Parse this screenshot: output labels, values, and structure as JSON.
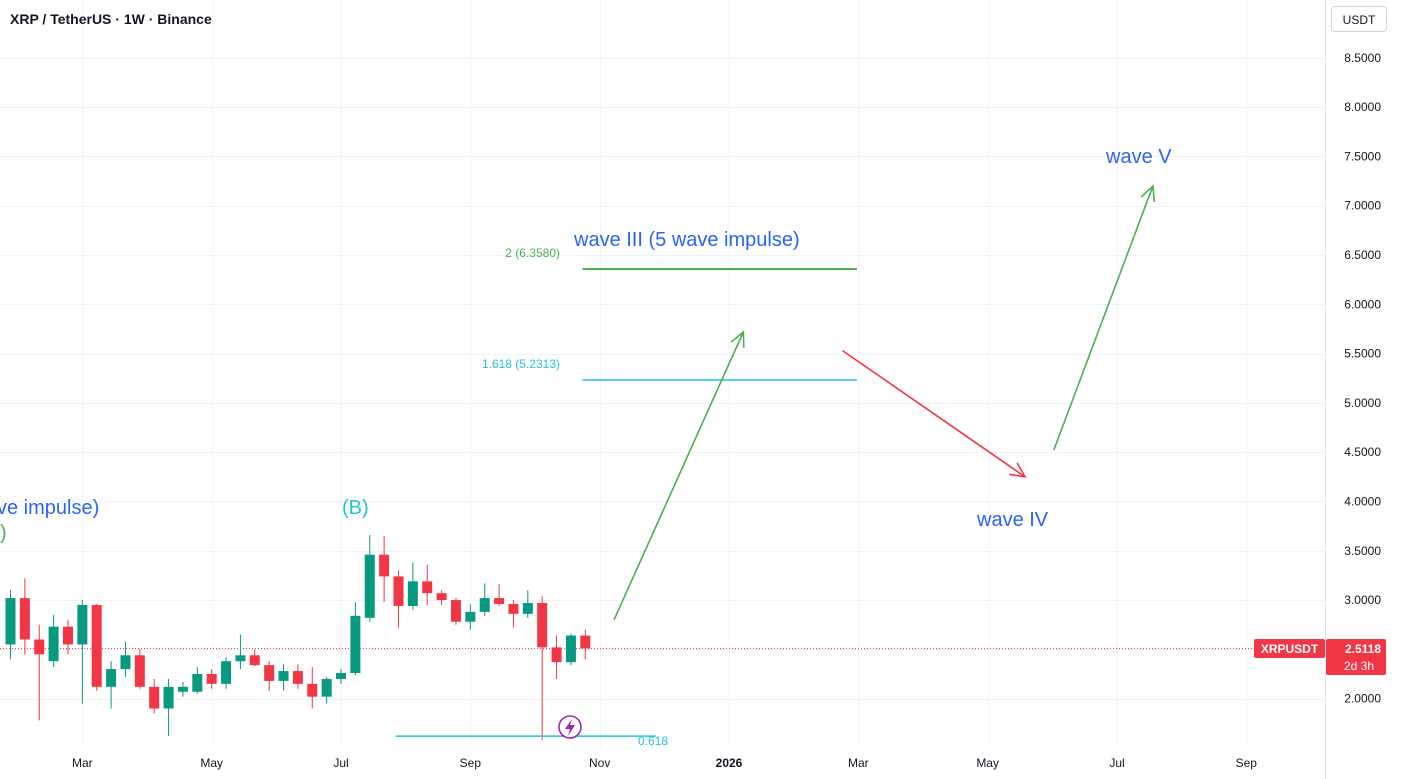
{
  "header": {
    "title": "XRP / TetherUS · 1W · Binance",
    "currency": "USDT"
  },
  "price_badge": {
    "symbol": "XRPUSDT",
    "price": "2.5118",
    "countdown": "2d 3h",
    "color": "#f23645"
  },
  "colors": {
    "up": "#089981",
    "down": "#f23645",
    "wave_label": "#2962ff",
    "cyan": "#22c3dc",
    "green_line": "#4caf50",
    "arrow_up": "#4caf50",
    "arrow_down": "#f23645",
    "lightning": "#9c27b0"
  },
  "annotations": {
    "wave3_label": "wave III (5 wave impulse)",
    "wave4_label": "wave IV",
    "wave5_label": "wave V",
    "wave_impulse_fragment": "ve impulse)",
    "paren_fragment": ")",
    "b_label": "(B)",
    "fib2_label": "2 (6.3580)",
    "fib1618_label": "1.618 (5.2313)",
    "fib0618_label": "0.618"
  },
  "chart_data": {
    "type": "candlestick",
    "symbol": "XRPUSDT",
    "interval": "1W",
    "exchange": "Binance",
    "ylim": [
      1.55,
      8.8
    ],
    "y_ticks": [
      "8.5000",
      "8.0000",
      "7.5000",
      "7.0000",
      "6.5000",
      "6.0000",
      "5.5000",
      "5.0000",
      "4.5000",
      "4.0000",
      "3.5000",
      "3.0000",
      "2.5000",
      "2.0000"
    ],
    "y_tick_values": [
      8.5,
      8.0,
      7.5,
      7.0,
      6.5,
      6.0,
      5.5,
      5.0,
      4.5,
      4.0,
      3.5,
      3.0,
      2.5,
      2.0
    ],
    "x_ticks": [
      {
        "label": "Mar",
        "week": 5,
        "bold": false
      },
      {
        "label": "May",
        "week": 14,
        "bold": false
      },
      {
        "label": "Jul",
        "week": 23,
        "bold": false
      },
      {
        "label": "Sep",
        "week": 32,
        "bold": false
      },
      {
        "label": "Nov",
        "week": 41,
        "bold": false
      },
      {
        "label": "2026",
        "week": 50,
        "bold": true
      },
      {
        "label": "Mar",
        "week": 59,
        "bold": false
      },
      {
        "label": "May",
        "week": 68,
        "bold": false
      },
      {
        "label": "Jul",
        "week": 77,
        "bold": false
      },
      {
        "label": "Sep",
        "week": 86,
        "bold": false
      }
    ],
    "candles": [
      {
        "week": 0,
        "o": 2.55,
        "h": 3.1,
        "l": 2.4,
        "c": 3.02
      },
      {
        "week": 1,
        "o": 3.02,
        "h": 3.22,
        "l": 2.45,
        "c": 2.6
      },
      {
        "week": 2,
        "o": 2.6,
        "h": 2.75,
        "l": 1.78,
        "c": 2.45
      },
      {
        "week": 3,
        "o": 2.38,
        "h": 2.85,
        "l": 2.32,
        "c": 2.73
      },
      {
        "week": 4,
        "o": 2.73,
        "h": 2.8,
        "l": 2.45,
        "c": 2.55
      },
      {
        "week": 5,
        "o": 2.55,
        "h": 3.0,
        "l": 1.95,
        "c": 2.95
      },
      {
        "week": 6,
        "o": 2.95,
        "h": 2.96,
        "l": 2.08,
        "c": 2.12
      },
      {
        "week": 7,
        "o": 2.12,
        "h": 2.38,
        "l": 1.9,
        "c": 2.3
      },
      {
        "week": 8,
        "o": 2.3,
        "h": 2.58,
        "l": 2.22,
        "c": 2.44
      },
      {
        "week": 9,
        "o": 2.44,
        "h": 2.5,
        "l": 2.1,
        "c": 2.12
      },
      {
        "week": 10,
        "o": 2.12,
        "h": 2.2,
        "l": 1.85,
        "c": 1.9
      },
      {
        "week": 11,
        "o": 1.9,
        "h": 2.2,
        "l": 1.62,
        "c": 2.12
      },
      {
        "week": 12,
        "o": 2.07,
        "h": 2.17,
        "l": 2.02,
        "c": 2.12
      },
      {
        "week": 13,
        "o": 2.07,
        "h": 2.32,
        "l": 2.05,
        "c": 2.25
      },
      {
        "week": 14,
        "o": 2.25,
        "h": 2.3,
        "l": 2.1,
        "c": 2.15
      },
      {
        "week": 15,
        "o": 2.15,
        "h": 2.42,
        "l": 2.1,
        "c": 2.38
      },
      {
        "week": 16,
        "o": 2.38,
        "h": 2.65,
        "l": 2.3,
        "c": 2.44
      },
      {
        "week": 17,
        "o": 2.44,
        "h": 2.5,
        "l": 2.33,
        "c": 2.34
      },
      {
        "week": 18,
        "o": 2.34,
        "h": 2.38,
        "l": 2.08,
        "c": 2.18
      },
      {
        "week": 19,
        "o": 2.18,
        "h": 2.35,
        "l": 2.08,
        "c": 2.28
      },
      {
        "week": 20,
        "o": 2.28,
        "h": 2.35,
        "l": 2.1,
        "c": 2.15
      },
      {
        "week": 21,
        "o": 2.15,
        "h": 2.32,
        "l": 1.9,
        "c": 2.02
      },
      {
        "week": 22,
        "o": 2.02,
        "h": 2.22,
        "l": 1.95,
        "c": 2.2
      },
      {
        "week": 23,
        "o": 2.2,
        "h": 2.3,
        "l": 2.15,
        "c": 2.26
      },
      {
        "week": 24,
        "o": 2.26,
        "h": 2.98,
        "l": 2.24,
        "c": 2.84
      },
      {
        "week": 25,
        "o": 2.82,
        "h": 3.66,
        "l": 2.78,
        "c": 3.46
      },
      {
        "week": 26,
        "o": 3.46,
        "h": 3.65,
        "l": 2.98,
        "c": 3.24
      },
      {
        "week": 27,
        "o": 3.24,
        "h": 3.3,
        "l": 2.72,
        "c": 2.94
      },
      {
        "week": 28,
        "o": 2.94,
        "h": 3.38,
        "l": 2.9,
        "c": 3.19
      },
      {
        "week": 29,
        "o": 3.19,
        "h": 3.36,
        "l": 2.95,
        "c": 3.07
      },
      {
        "week": 30,
        "o": 3.07,
        "h": 3.1,
        "l": 2.95,
        "c": 3.0
      },
      {
        "week": 31,
        "o": 3.0,
        "h": 3.02,
        "l": 2.75,
        "c": 2.78
      },
      {
        "week": 32,
        "o": 2.78,
        "h": 2.96,
        "l": 2.7,
        "c": 2.88
      },
      {
        "week": 33,
        "o": 2.88,
        "h": 3.17,
        "l": 2.84,
        "c": 3.02
      },
      {
        "week": 34,
        "o": 3.02,
        "h": 3.16,
        "l": 2.94,
        "c": 2.96
      },
      {
        "week": 35,
        "o": 2.96,
        "h": 3.0,
        "l": 2.72,
        "c": 2.86
      },
      {
        "week": 36,
        "o": 2.86,
        "h": 3.1,
        "l": 2.82,
        "c": 2.97
      },
      {
        "week": 37,
        "o": 2.97,
        "h": 3.04,
        "l": 1.58,
        "c": 2.52
      },
      {
        "week": 38,
        "o": 2.52,
        "h": 2.64,
        "l": 2.2,
        "c": 2.37
      },
      {
        "week": 39,
        "o": 2.37,
        "h": 2.66,
        "l": 2.34,
        "c": 2.64
      },
      {
        "week": 40,
        "o": 2.64,
        "h": 2.7,
        "l": 2.4,
        "c": 2.51
      }
    ],
    "current_price": 2.5118,
    "fib_levels": [
      {
        "label": "2 (6.3580)",
        "value": 6.358,
        "week_from": 39.8,
        "week_to": 58.9,
        "color": "#4caf50"
      },
      {
        "label": "1.618 (5.2313)",
        "value": 5.2313,
        "week_from": 39.8,
        "week_to": 58.9,
        "color": "#22c3dc"
      },
      {
        "label": "0.618",
        "value": 1.62,
        "week_from": 26.8,
        "week_to": 44.9,
        "color": "#22c3dc"
      }
    ],
    "projection_path": [
      {
        "week": 42,
        "price": 2.8
      },
      {
        "week": 51,
        "price": 5.72
      },
      {
        "week": 57.9,
        "price": 5.53
      },
      {
        "week": 70.6,
        "price": 4.25
      },
      {
        "week": 72.6,
        "price": 4.52
      },
      {
        "week": 79.5,
        "price": 7.2
      }
    ]
  }
}
